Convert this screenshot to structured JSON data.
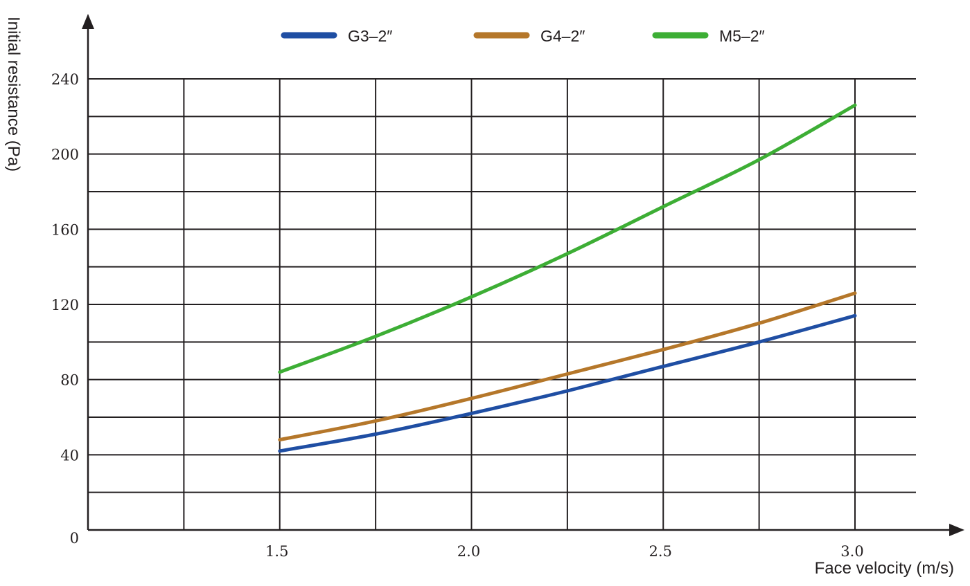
{
  "chart_data": {
    "type": "line",
    "xlabel": "Face velocity (m/s)",
    "ylabel": "Initial resistance (Pa)",
    "xlim": [
      1.0,
      3.0
    ],
    "ylim": [
      0,
      240
    ],
    "x_ticks": [
      {
        "value": 1.5,
        "label": "1.5"
      },
      {
        "value": 2.0,
        "label": "2.0"
      },
      {
        "value": 2.5,
        "label": "2.5"
      },
      {
        "value": 3.0,
        "label": "3.0"
      }
    ],
    "y_ticks": [
      {
        "value": 0,
        "label": "0"
      },
      {
        "value": 40,
        "label": "40"
      },
      {
        "value": 80,
        "label": "80"
      },
      {
        "value": 120,
        "label": "120"
      },
      {
        "value": 160,
        "label": "160"
      },
      {
        "value": 200,
        "label": "200"
      },
      {
        "value": 240,
        "label": "240"
      }
    ],
    "grid": true,
    "legend_position": "top",
    "x": [
      1.5,
      1.75,
      2.0,
      2.25,
      2.5,
      2.75,
      3.0
    ],
    "series": [
      {
        "name": "G3–2″",
        "color": "#1f4ea3",
        "values": [
          42,
          51,
          62,
          74,
          87,
          100,
          114
        ]
      },
      {
        "name": "G4–2″",
        "color": "#b5772a",
        "values": [
          48,
          58,
          70,
          83,
          96,
          110,
          126
        ]
      },
      {
        "name": "M5–2″",
        "color": "#3dae35",
        "values": [
          84,
          103,
          124,
          147,
          172,
          197,
          226
        ]
      }
    ]
  }
}
